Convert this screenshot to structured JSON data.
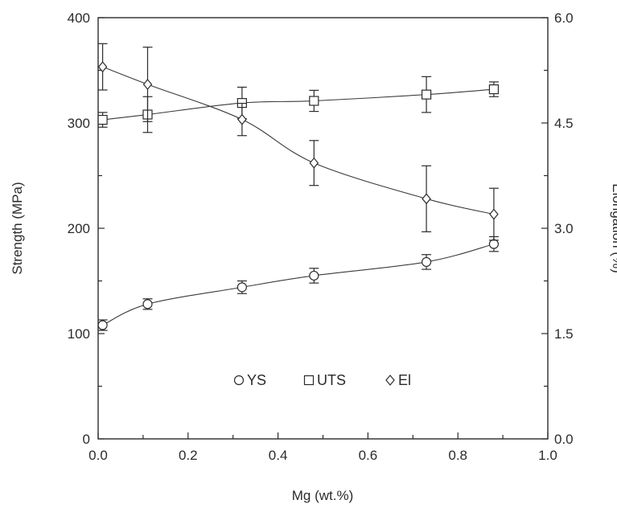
{
  "chart_data": {
    "type": "scatter",
    "xlabel": "Mg (wt.%)",
    "ylabel_left": "Strength (MPa)",
    "ylabel_right": "Elongation (%)",
    "xlim": [
      0.0,
      1.0
    ],
    "ylim_left": [
      0,
      400
    ],
    "ylim_right": [
      0.0,
      6.0
    ],
    "x_ticks": [
      "0.0",
      "0.2",
      "0.4",
      "0.6",
      "0.8",
      "1.0"
    ],
    "y_ticks_left": [
      "0",
      "100",
      "200",
      "300",
      "400"
    ],
    "y_ticks_right": [
      "0.0",
      "1.5",
      "3.0",
      "4.5",
      "6.0"
    ],
    "grid": false,
    "legend_position": "center",
    "series": [
      {
        "name": "YS",
        "marker": "circle",
        "axis": "left",
        "x": [
          0.01,
          0.11,
          0.32,
          0.48,
          0.73,
          0.88
        ],
        "y": [
          108,
          128,
          144,
          155,
          168,
          185
        ],
        "err": [
          5,
          5,
          6,
          7,
          7,
          7
        ]
      },
      {
        "name": "UTS",
        "marker": "square",
        "axis": "left",
        "x": [
          0.01,
          0.11,
          0.32,
          0.48,
          0.73,
          0.88
        ],
        "y": [
          303,
          308,
          319,
          321,
          327,
          332
        ],
        "err": [
          7,
          17,
          15,
          10,
          17,
          7
        ]
      },
      {
        "name": "El",
        "marker": "diamond",
        "axis": "right",
        "x": [
          0.01,
          0.11,
          0.32,
          0.48,
          0.73,
          0.88
        ],
        "y": [
          5.3,
          5.05,
          4.55,
          3.93,
          3.42,
          3.2
        ],
        "err": [
          0.33,
          0.53,
          0.23,
          0.32,
          0.47,
          0.37
        ]
      }
    ]
  }
}
